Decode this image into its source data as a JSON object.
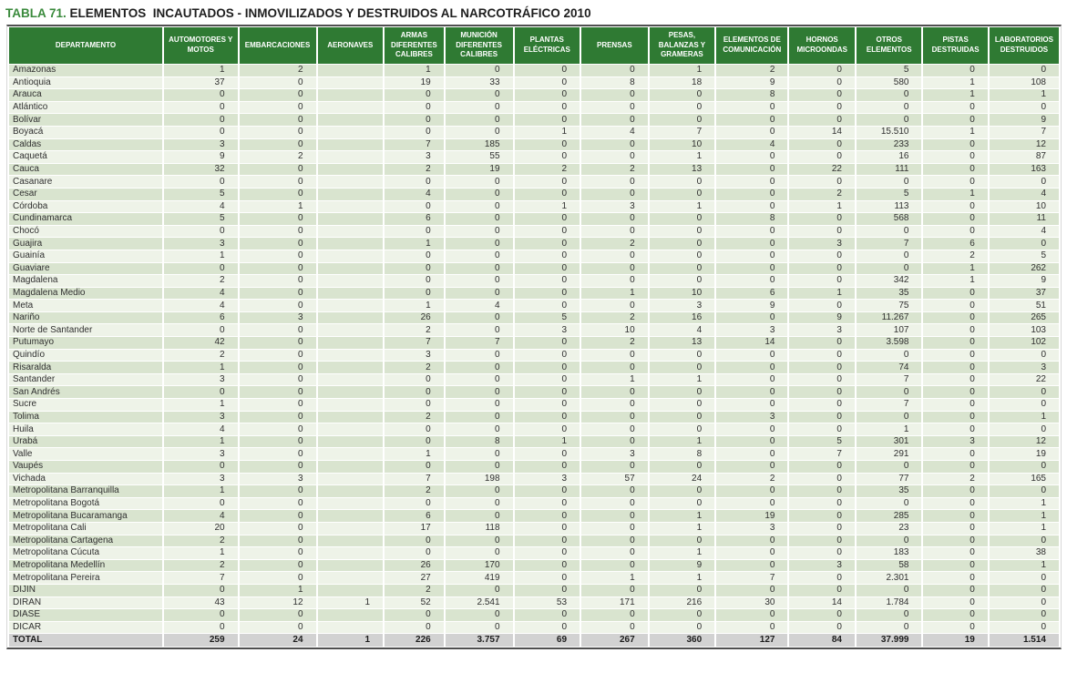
{
  "title": {
    "prefix": "TABLA 71.",
    "text": " ELEMENTOS  INCAUTADOS - INMOVILIZADOS Y DESTRUIDOS AL NARCOTRÁFICO 2010"
  },
  "colors": {
    "header_bg": "#2f7a33",
    "title_green": "#3a8a3c",
    "row_odd": "#d9e4cf",
    "row_even": "#eef3e8",
    "total_bg": "#d2d2d2",
    "frame_dark": "#4f4f4f"
  },
  "table": {
    "columns": [
      "DEPARTAMENTO",
      "AUTOMOTORES Y MOTOS",
      "EMBARCACIONES",
      "AERONAVES",
      "ARMAS DIFERENTES CALIBRES",
      "MUNICIÓN DIFERENTES CALIBRES",
      "PLANTAS ELÉCTRICAS",
      "PRENSAS",
      "PESAS, BALANZAS Y GRAMERAS",
      "ELEMENTOS DE COMUNICACIÓN",
      "HORNOS MICROONDAS",
      "OTROS ELEMENTOS",
      "PISTAS DESTRUIDAS",
      "LABORATORIOS DESTRUIDOS"
    ],
    "rows": [
      {
        "name": "Amazonas",
        "values": [
          "1",
          "2",
          "",
          "1",
          "0",
          "0",
          "0",
          "1",
          "2",
          "0",
          "5",
          "0",
          "0"
        ]
      },
      {
        "name": "Antioquia",
        "values": [
          "37",
          "0",
          "",
          "19",
          "33",
          "0",
          "8",
          "18",
          "9",
          "0",
          "580",
          "1",
          "108"
        ]
      },
      {
        "name": "Arauca",
        "values": [
          "0",
          "0",
          "",
          "0",
          "0",
          "0",
          "0",
          "0",
          "8",
          "0",
          "0",
          "1",
          "1"
        ]
      },
      {
        "name": "Atlántico",
        "values": [
          "0",
          "0",
          "",
          "0",
          "0",
          "0",
          "0",
          "0",
          "0",
          "0",
          "0",
          "0",
          "0"
        ]
      },
      {
        "name": "Bolívar",
        "values": [
          "0",
          "0",
          "",
          "0",
          "0",
          "0",
          "0",
          "0",
          "0",
          "0",
          "0",
          "0",
          "9"
        ]
      },
      {
        "name": "Boyacá",
        "values": [
          "0",
          "0",
          "",
          "0",
          "0",
          "1",
          "4",
          "7",
          "0",
          "14",
          "15.510",
          "1",
          "7"
        ]
      },
      {
        "name": "Caldas",
        "values": [
          "3",
          "0",
          "",
          "7",
          "185",
          "0",
          "0",
          "10",
          "4",
          "0",
          "233",
          "0",
          "12"
        ]
      },
      {
        "name": "Caquetá",
        "values": [
          "9",
          "2",
          "",
          "3",
          "55",
          "0",
          "0",
          "1",
          "0",
          "0",
          "16",
          "0",
          "87"
        ]
      },
      {
        "name": "Cauca",
        "values": [
          "32",
          "0",
          "",
          "2",
          "19",
          "2",
          "2",
          "13",
          "0",
          "22",
          "111",
          "0",
          "163"
        ]
      },
      {
        "name": "Casanare",
        "values": [
          "0",
          "0",
          "",
          "0",
          "0",
          "0",
          "0",
          "0",
          "0",
          "0",
          "0",
          "0",
          "0"
        ]
      },
      {
        "name": "Cesar",
        "values": [
          "5",
          "0",
          "",
          "4",
          "0",
          "0",
          "0",
          "0",
          "0",
          "2",
          "5",
          "1",
          "4"
        ]
      },
      {
        "name": "Córdoba",
        "values": [
          "4",
          "1",
          "",
          "0",
          "0",
          "1",
          "3",
          "1",
          "0",
          "1",
          "113",
          "0",
          "10"
        ]
      },
      {
        "name": "Cundinamarca",
        "values": [
          "5",
          "0",
          "",
          "6",
          "0",
          "0",
          "0",
          "0",
          "8",
          "0",
          "568",
          "0",
          "11"
        ]
      },
      {
        "name": "Chocó",
        "values": [
          "0",
          "0",
          "",
          "0",
          "0",
          "0",
          "0",
          "0",
          "0",
          "0",
          "0",
          "0",
          "4"
        ]
      },
      {
        "name": "Guajira",
        "values": [
          "3",
          "0",
          "",
          "1",
          "0",
          "0",
          "2",
          "0",
          "0",
          "3",
          "7",
          "6",
          "0"
        ]
      },
      {
        "name": "Guainía",
        "values": [
          "1",
          "0",
          "",
          "0",
          "0",
          "0",
          "0",
          "0",
          "0",
          "0",
          "0",
          "2",
          "5"
        ]
      },
      {
        "name": "Guaviare",
        "values": [
          "0",
          "0",
          "",
          "0",
          "0",
          "0",
          "0",
          "0",
          "0",
          "0",
          "0",
          "1",
          "262"
        ]
      },
      {
        "name": "Magdalena",
        "values": [
          "2",
          "0",
          "",
          "0",
          "0",
          "0",
          "0",
          "0",
          "0",
          "0",
          "342",
          "1",
          "9"
        ]
      },
      {
        "name": "Magdalena Medio",
        "values": [
          "4",
          "0",
          "",
          "0",
          "0",
          "0",
          "1",
          "10",
          "6",
          "1",
          "35",
          "0",
          "37"
        ]
      },
      {
        "name": "Meta",
        "values": [
          "4",
          "0",
          "",
          "1",
          "4",
          "0",
          "0",
          "3",
          "9",
          "0",
          "75",
          "0",
          "51"
        ]
      },
      {
        "name": "Nariño",
        "values": [
          "6",
          "3",
          "",
          "26",
          "0",
          "5",
          "2",
          "16",
          "0",
          "9",
          "11.267",
          "0",
          "265"
        ]
      },
      {
        "name": "Norte de Santander",
        "values": [
          "0",
          "0",
          "",
          "2",
          "0",
          "3",
          "10",
          "4",
          "3",
          "3",
          "107",
          "0",
          "103"
        ]
      },
      {
        "name": "Putumayo",
        "values": [
          "42",
          "0",
          "",
          "7",
          "7",
          "0",
          "2",
          "13",
          "14",
          "0",
          "3.598",
          "0",
          "102"
        ]
      },
      {
        "name": "Quindío",
        "values": [
          "2",
          "0",
          "",
          "3",
          "0",
          "0",
          "0",
          "0",
          "0",
          "0",
          "0",
          "0",
          "0"
        ]
      },
      {
        "name": "Risaralda",
        "values": [
          "1",
          "0",
          "",
          "2",
          "0",
          "0",
          "0",
          "0",
          "0",
          "0",
          "74",
          "0",
          "3"
        ]
      },
      {
        "name": "Santander",
        "values": [
          "3",
          "0",
          "",
          "0",
          "0",
          "0",
          "1",
          "1",
          "0",
          "0",
          "7",
          "0",
          "22"
        ]
      },
      {
        "name": "San Andrés",
        "values": [
          "0",
          "0",
          "",
          "0",
          "0",
          "0",
          "0",
          "0",
          "0",
          "0",
          "0",
          "0",
          "0"
        ]
      },
      {
        "name": "Sucre",
        "values": [
          "1",
          "0",
          "",
          "0",
          "0",
          "0",
          "0",
          "0",
          "0",
          "0",
          "7",
          "0",
          "0"
        ]
      },
      {
        "name": "Tolima",
        "values": [
          "3",
          "0",
          "",
          "2",
          "0",
          "0",
          "0",
          "0",
          "3",
          "0",
          "0",
          "0",
          "1"
        ]
      },
      {
        "name": "Huila",
        "values": [
          "4",
          "0",
          "",
          "0",
          "0",
          "0",
          "0",
          "0",
          "0",
          "0",
          "1",
          "0",
          "0"
        ]
      },
      {
        "name": "Urabá",
        "values": [
          "1",
          "0",
          "",
          "0",
          "8",
          "1",
          "0",
          "1",
          "0",
          "5",
          "301",
          "3",
          "12"
        ]
      },
      {
        "name": "Valle",
        "values": [
          "3",
          "0",
          "",
          "1",
          "0",
          "0",
          "3",
          "8",
          "0",
          "7",
          "291",
          "0",
          "19"
        ]
      },
      {
        "name": "Vaupés",
        "values": [
          "0",
          "0",
          "",
          "0",
          "0",
          "0",
          "0",
          "0",
          "0",
          "0",
          "0",
          "0",
          "0"
        ]
      },
      {
        "name": "Vichada",
        "values": [
          "3",
          "3",
          "",
          "7",
          "198",
          "3",
          "57",
          "24",
          "2",
          "0",
          "77",
          "2",
          "165"
        ]
      },
      {
        "name": "Metropolitana Barranquilla",
        "values": [
          "1",
          "0",
          "",
          "2",
          "0",
          "0",
          "0",
          "0",
          "0",
          "0",
          "35",
          "0",
          "0"
        ]
      },
      {
        "name": "Metropolitana Bogotá",
        "values": [
          "0",
          "0",
          "",
          "0",
          "0",
          "0",
          "0",
          "0",
          "0",
          "0",
          "0",
          "0",
          "1"
        ]
      },
      {
        "name": "Metropolitana Bucaramanga",
        "values": [
          "4",
          "0",
          "",
          "6",
          "0",
          "0",
          "0",
          "1",
          "19",
          "0",
          "285",
          "0",
          "1"
        ]
      },
      {
        "name": "Metropolitana Cali",
        "values": [
          "20",
          "0",
          "",
          "17",
          "118",
          "0",
          "0",
          "1",
          "3",
          "0",
          "23",
          "0",
          "1"
        ]
      },
      {
        "name": "Metropolitana Cartagena",
        "values": [
          "2",
          "0",
          "",
          "0",
          "0",
          "0",
          "0",
          "0",
          "0",
          "0",
          "0",
          "0",
          "0"
        ]
      },
      {
        "name": "Metropolitana Cúcuta",
        "values": [
          "1",
          "0",
          "",
          "0",
          "0",
          "0",
          "0",
          "1",
          "0",
          "0",
          "183",
          "0",
          "38"
        ]
      },
      {
        "name": "Metropolitana Medellín",
        "values": [
          "2",
          "0",
          "",
          "26",
          "170",
          "0",
          "0",
          "9",
          "0",
          "3",
          "58",
          "0",
          "1"
        ]
      },
      {
        "name": "Metropolitana Pereira",
        "values": [
          "7",
          "0",
          "",
          "27",
          "419",
          "0",
          "1",
          "1",
          "7",
          "0",
          "2.301",
          "0",
          "0"
        ]
      },
      {
        "name": "DIJIN",
        "values": [
          "0",
          "1",
          "",
          "2",
          "0",
          "0",
          "0",
          "0",
          "0",
          "0",
          "0",
          "0",
          "0"
        ]
      },
      {
        "name": "DIRAN",
        "values": [
          "43",
          "12",
          "1",
          "52",
          "2.541",
          "53",
          "171",
          "216",
          "30",
          "14",
          "1.784",
          "0",
          "0"
        ]
      },
      {
        "name": "DIASE",
        "values": [
          "0",
          "0",
          "",
          "0",
          "0",
          "0",
          "0",
          "0",
          "0",
          "0",
          "0",
          "0",
          "0"
        ]
      },
      {
        "name": "DICAR",
        "values": [
          "0",
          "0",
          "",
          "0",
          "0",
          "0",
          "0",
          "0",
          "0",
          "0",
          "0",
          "0",
          "0"
        ]
      }
    ],
    "total": {
      "name": "TOTAL",
      "values": [
        "259",
        "24",
        "1",
        "226",
        "3.757",
        "69",
        "267",
        "360",
        "127",
        "84",
        "37.999",
        "19",
        "1.514"
      ]
    }
  }
}
